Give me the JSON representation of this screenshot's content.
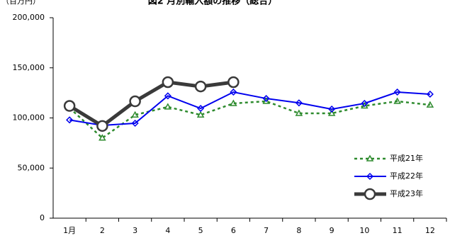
{
  "chart_data": {
    "type": "line",
    "title": "図2 月別輸入額の推移（総合）",
    "y_unit": "（百万円）",
    "categories": [
      "1月",
      "2",
      "3",
      "4",
      "5",
      "6",
      "7",
      "8",
      "9",
      "10",
      "11",
      "12"
    ],
    "series": [
      {
        "name": "平成21年",
        "color": "#2e8b2e",
        "dash": "4,4",
        "marker": "triangle",
        "width": 2.5,
        "values": [
          110000,
          80000,
          103000,
          111000,
          103000,
          114500,
          116600,
          104600,
          104600,
          112000,
          116600,
          113000
        ]
      },
      {
        "name": "平成22年",
        "color": "#0000ee",
        "dash": "",
        "marker": "diamond",
        "width": 2,
        "values": [
          98000,
          92600,
          94700,
          122000,
          109500,
          125800,
          119400,
          115000,
          108800,
          114500,
          125800,
          123700
        ]
      },
      {
        "name": "平成23年",
        "color": "#3a3a3a",
        "dash": "",
        "marker": "circle",
        "width": 5,
        "values": [
          112000,
          92000,
          116600,
          135700,
          131400,
          135700,
          null,
          null,
          null,
          null,
          null,
          null
        ]
      }
    ],
    "ylim": [
      0,
      200000
    ],
    "yticks": [
      0,
      {
        "value": 50000,
        "label": "50,000"
      },
      {
        "value": 100000,
        "label": "100,000"
      },
      {
        "value": 150000,
        "label": "150,000"
      },
      {
        "value": 200000,
        "label": "200,000"
      }
    ],
    "grid": false,
    "legend": "lower-right"
  }
}
